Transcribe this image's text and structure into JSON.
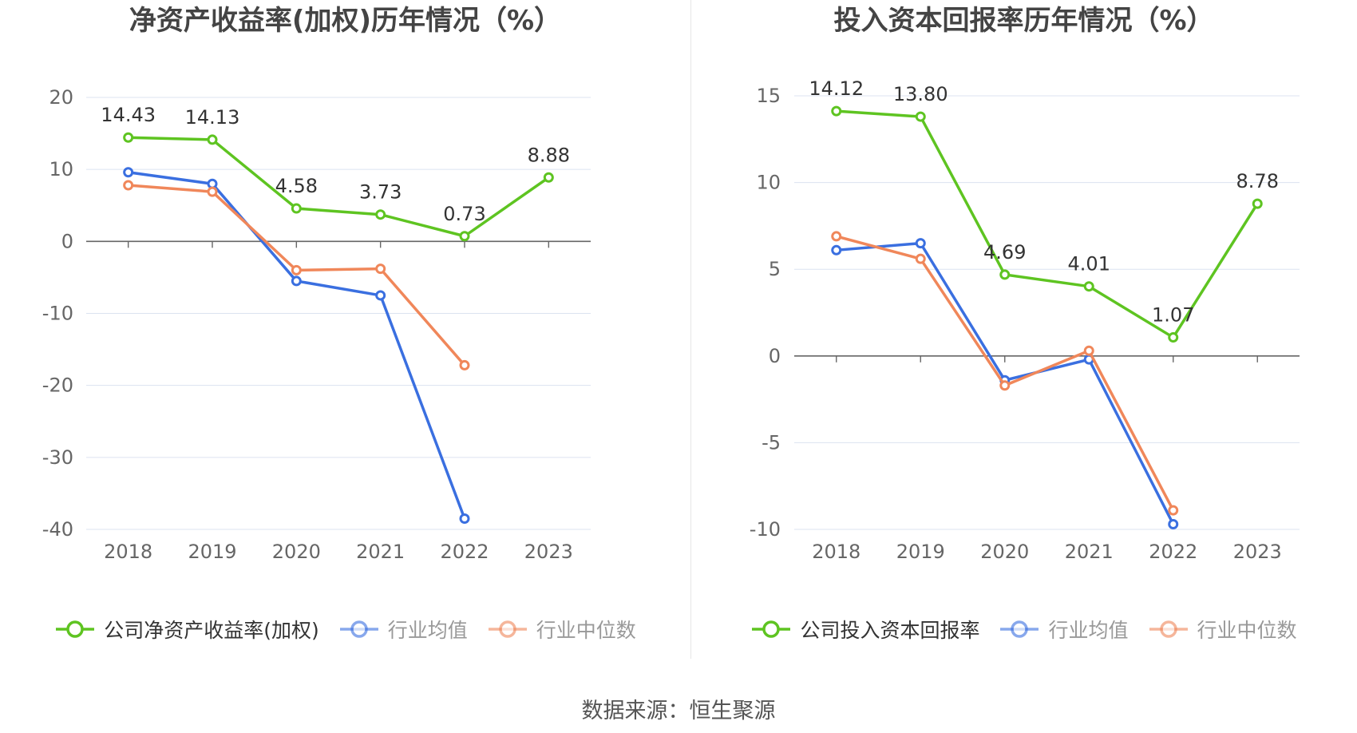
{
  "colors": {
    "company": "#5ec421",
    "industry_mean": "#3a6fe0",
    "industry_median": "#f0875a",
    "grid": "#dce3f0",
    "zero_axis": "#666666"
  },
  "source_text": "数据来源：恒生聚源",
  "chart_data": [
    {
      "type": "line",
      "title": "净资产收益率(加权)历年情况（%）",
      "x": [
        "2018",
        "2019",
        "2020",
        "2021",
        "2022",
        "2023"
      ],
      "ylim": [
        -40,
        20
      ],
      "yticks": [
        20,
        10,
        0,
        -10,
        -20,
        -30,
        -40
      ],
      "grid": true,
      "legend_position": "bottom",
      "series": [
        {
          "name": "公司净资产收益率(加权)",
          "color_key": "company",
          "values": [
            14.43,
            14.13,
            4.58,
            3.73,
            0.73,
            8.88
          ],
          "labels": [
            "14.43",
            "14.13",
            "4.58",
            "3.73",
            "0.73",
            "8.88"
          ],
          "show_labels": true
        },
        {
          "name": "行业均值",
          "color_key": "industry_mean",
          "values": [
            9.6,
            8.0,
            -5.5,
            -7.5,
            -38.5,
            null
          ],
          "show_labels": false
        },
        {
          "name": "行业中位数",
          "color_key": "industry_median",
          "values": [
            7.8,
            6.9,
            -4.0,
            -3.8,
            -17.2,
            null
          ],
          "show_labels": false
        }
      ]
    },
    {
      "type": "line",
      "title": "投入资本回报率历年情况（%）",
      "x": [
        "2018",
        "2019",
        "2020",
        "2021",
        "2022",
        "2023"
      ],
      "ylim": [
        -10,
        15
      ],
      "yticks": [
        15,
        10,
        5,
        0,
        -5,
        -10
      ],
      "grid": true,
      "legend_position": "bottom",
      "series": [
        {
          "name": "公司投入资本回报率",
          "color_key": "company",
          "values": [
            14.12,
            13.8,
            4.69,
            4.01,
            1.07,
            8.78
          ],
          "labels": [
            "14.12",
            "13.80",
            "4.69",
            "4.01",
            "1.07",
            "8.78"
          ],
          "show_labels": true
        },
        {
          "name": "行业均值",
          "color_key": "industry_mean",
          "values": [
            6.1,
            6.5,
            -1.4,
            -0.2,
            -9.7,
            null
          ],
          "show_labels": false
        },
        {
          "name": "行业中位数",
          "color_key": "industry_median",
          "values": [
            6.9,
            5.6,
            -1.7,
            0.3,
            -8.9,
            null
          ],
          "show_labels": false
        }
      ]
    }
  ]
}
